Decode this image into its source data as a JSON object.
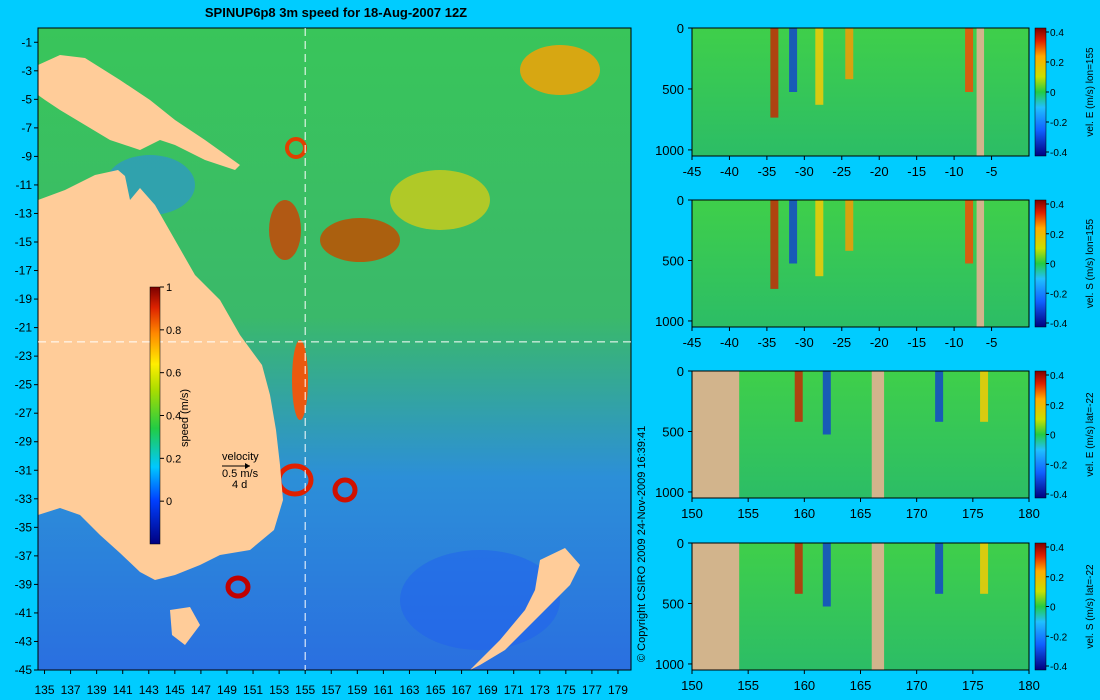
{
  "background_color": "#00ccff",
  "land_color": "#ffcc99",
  "section_land_color": "#d2b48c",
  "copyright": "© Copyright CSIRO 2009   24-Nov-2009 16:39:41",
  "chart_data": [
    {
      "type": "heatmap",
      "title": "SPINUP6p8 3m speed for 18-Aug-2007 12Z",
      "x_ticks": [
        "135",
        "137",
        "139",
        "141",
        "143",
        "145",
        "147",
        "149",
        "151",
        "153",
        "155",
        "157",
        "159",
        "161",
        "163",
        "165",
        "167",
        "169",
        "171",
        "173",
        "175",
        "177",
        "179"
      ],
      "y_ticks": [
        "-1",
        "-3",
        "-5",
        "-7",
        "-9",
        "-11",
        "-13",
        "-15",
        "-17",
        "-19",
        "-21",
        "-23",
        "-25",
        "-27",
        "-29",
        "-31",
        "-33",
        "-35",
        "-37",
        "-39",
        "-41",
        "-43",
        "-45"
      ],
      "xlim": [
        134.5,
        180
      ],
      "ylim": [
        -45,
        0
      ],
      "section_lines": {
        "lon": 155,
        "lat": -22
      },
      "colorbar": {
        "label": "speed (m/s)",
        "ticks": [
          "1",
          "0.8",
          "0.6",
          "0.4",
          "0.2",
          "0"
        ],
        "range": [
          -0.2,
          1
        ]
      },
      "legend": {
        "title": "velocity",
        "speed": "0.5 m/s",
        "duration": "4 d"
      }
    },
    {
      "type": "heatmap",
      "x_ticks": [
        "-45",
        "-40",
        "-35",
        "-30",
        "-25",
        "-20",
        "-15",
        "-10",
        "-5"
      ],
      "y_ticks": [
        "0",
        "500",
        "1000"
      ],
      "xlim": [
        -45,
        0
      ],
      "ylim": [
        0,
        1050
      ],
      "colorbar": {
        "label": "vel. E (m/s) lon=155",
        "ticks": [
          "0.4",
          "0.2",
          "0",
          "-0.2",
          "-0.4"
        ]
      }
    },
    {
      "type": "heatmap",
      "x_ticks": [
        "-45",
        "-40",
        "-35",
        "-30",
        "-25",
        "-20",
        "-15",
        "-10",
        "-5"
      ],
      "y_ticks": [
        "0",
        "500",
        "1000"
      ],
      "xlim": [
        -45,
        0
      ],
      "ylim": [
        0,
        1050
      ],
      "colorbar": {
        "label": "vel. S (m/s) lon=155",
        "ticks": [
          "0.4",
          "0.2",
          "0",
          "-0.2",
          "-0.4"
        ]
      }
    },
    {
      "type": "heatmap",
      "x_ticks": [
        "150",
        "155",
        "160",
        "165",
        "170",
        "175",
        "180"
      ],
      "y_ticks": [
        "0",
        "500",
        "1000"
      ],
      "xlim": [
        150,
        180
      ],
      "ylim": [
        0,
        1050
      ],
      "colorbar": {
        "label": "vel. E (m/s) lat=-22",
        "ticks": [
          "0.4",
          "0.2",
          "0",
          "-0.2",
          "-0.4"
        ]
      }
    },
    {
      "type": "heatmap",
      "x_ticks": [
        "150",
        "155",
        "160",
        "165",
        "170",
        "175",
        "180"
      ],
      "y_ticks": [
        "0",
        "500",
        "1000"
      ],
      "xlim": [
        150,
        180
      ],
      "ylim": [
        0,
        1050
      ],
      "colorbar": {
        "label": "vel. S (m/s) lat=-22",
        "ticks": [
          "0.4",
          "0.2",
          "0",
          "-0.2",
          "-0.4"
        ]
      }
    }
  ]
}
